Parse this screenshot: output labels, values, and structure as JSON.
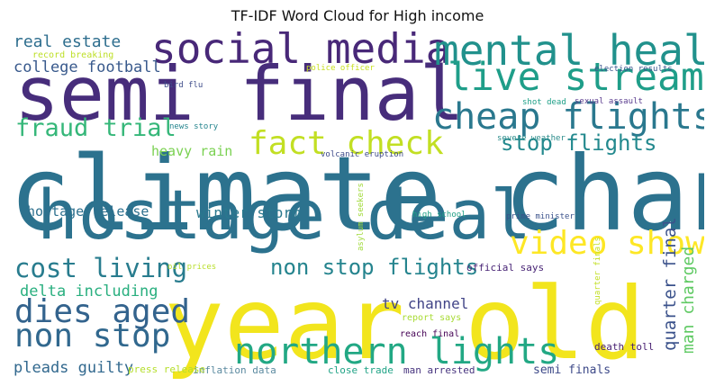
{
  "chart_data": {
    "type": "wordcloud",
    "title": "TF-IDF Word Cloud for High income",
    "words": [
      {
        "text": "climate change",
        "weight": 1.0,
        "color": "#2c728e",
        "orientation": "horizontal"
      },
      {
        "text": "year old",
        "weight": 0.97,
        "color": "#f2e51d",
        "orientation": "horizontal"
      },
      {
        "text": "semi final",
        "weight": 0.73,
        "color": "#472d7b",
        "orientation": "horizontal"
      },
      {
        "text": "hostage deal",
        "weight": 0.67,
        "color": "#2c728e",
        "orientation": "horizontal"
      },
      {
        "text": "social media",
        "weight": 0.4,
        "color": "#482878",
        "orientation": "horizontal"
      },
      {
        "text": "mental health",
        "weight": 0.4,
        "color": "#21918c",
        "orientation": "horizontal"
      },
      {
        "text": "live stream",
        "weight": 0.38,
        "color": "#1f9e89",
        "orientation": "horizontal"
      },
      {
        "text": "cheap flights",
        "weight": 0.35,
        "color": "#2a788e",
        "orientation": "horizontal"
      },
      {
        "text": "northern lights",
        "weight": 0.35,
        "color": "#22a884",
        "orientation": "horizontal"
      },
      {
        "text": "fact check",
        "weight": 0.32,
        "color": "#c2df23",
        "orientation": "horizontal"
      },
      {
        "text": "video shows",
        "weight": 0.32,
        "color": "#fde725",
        "orientation": "horizontal"
      },
      {
        "text": "non stop",
        "weight": 0.32,
        "color": "#31688e",
        "orientation": "horizontal"
      },
      {
        "text": "dies aged",
        "weight": 0.32,
        "color": "#33638d",
        "orientation": "horizontal"
      },
      {
        "text": "cost living",
        "weight": 0.25,
        "color": "#287c8e",
        "orientation": "horizontal"
      },
      {
        "text": "fraud trial",
        "weight": 0.24,
        "color": "#35b779",
        "orientation": "horizontal"
      },
      {
        "text": "stop flights",
        "weight": 0.21,
        "color": "#23898e",
        "orientation": "horizontal"
      },
      {
        "text": "non stop flights",
        "weight": 0.21,
        "color": "#25848e",
        "orientation": "horizontal"
      },
      {
        "text": "quarter final",
        "weight": 0.17,
        "color": "#3b528b",
        "orientation": "vertical"
      },
      {
        "text": "man charged",
        "weight": 0.16,
        "color": "#5ec962",
        "orientation": "vertical"
      },
      {
        "text": "real estate",
        "weight": 0.16,
        "color": "#2e6e8e",
        "orientation": "horizontal"
      },
      {
        "text": "delta including",
        "weight": 0.15,
        "color": "#29af7f",
        "orientation": "horizontal"
      },
      {
        "text": "pleads guilty",
        "weight": 0.15,
        "color": "#31688e",
        "orientation": "horizontal"
      },
      {
        "text": "college football",
        "weight": 0.15,
        "color": "#38598c",
        "orientation": "horizontal"
      },
      {
        "text": "hostage release",
        "weight": 0.13,
        "color": "#2d708e",
        "orientation": "horizontal"
      },
      {
        "text": "winter storm",
        "weight": 0.14,
        "color": "#2a788e",
        "orientation": "horizontal"
      },
      {
        "text": "tv channel",
        "weight": 0.14,
        "color": "#414487",
        "orientation": "horizontal"
      },
      {
        "text": "heavy rain",
        "weight": 0.13,
        "color": "#7ad151",
        "orientation": "horizontal"
      },
      {
        "text": "inflation data",
        "weight": 0.1,
        "color": "#5b8aa0",
        "orientation": "horizontal"
      },
      {
        "text": "press release",
        "weight": 0.1,
        "color": "#b5de2b",
        "orientation": "horizontal"
      },
      {
        "text": "close trade",
        "weight": 0.1,
        "color": "#20a386",
        "orientation": "horizontal"
      },
      {
        "text": "man arrested",
        "weight": 0.1,
        "color": "#46337e",
        "orientation": "horizontal"
      },
      {
        "text": "semi finals",
        "weight": 0.11,
        "color": "#3e4a89",
        "orientation": "horizontal"
      },
      {
        "text": "death toll",
        "weight": 0.1,
        "color": "#482071",
        "orientation": "horizontal"
      },
      {
        "text": "official says",
        "weight": 0.1,
        "color": "#482475",
        "orientation": "horizontal"
      },
      {
        "text": "report says",
        "weight": 0.09,
        "color": "#a8db34",
        "orientation": "horizontal"
      },
      {
        "text": "reach final",
        "weight": 0.09,
        "color": "#440154",
        "orientation": "horizontal"
      },
      {
        "text": "record breaking",
        "weight": 0.09,
        "color": "#bddf26",
        "orientation": "horizontal"
      },
      {
        "text": "police officer",
        "weight": 0.08,
        "color": "#c8e020",
        "orientation": "horizontal"
      },
      {
        "text": "election results",
        "weight": 0.08,
        "color": "#3a548c",
        "orientation": "horizontal"
      },
      {
        "text": "bird flu",
        "weight": 0.08,
        "color": "#3e4c8a",
        "orientation": "horizontal"
      },
      {
        "text": "shot dead",
        "weight": 0.08,
        "color": "#1fa088",
        "orientation": "horizontal"
      },
      {
        "text": "sexual assault",
        "weight": 0.08,
        "color": "#5b3d8f",
        "orientation": "horizontal"
      },
      {
        "text": "news story",
        "weight": 0.07,
        "color": "#25858e",
        "orientation": "horizontal"
      },
      {
        "text": "severe weather",
        "weight": 0.08,
        "color": "#2a8b8a",
        "orientation": "horizontal"
      },
      {
        "text": "volcanic eruption",
        "weight": 0.08,
        "color": "#3d4a89",
        "orientation": "horizontal"
      },
      {
        "text": "high school",
        "weight": 0.07,
        "color": "#23a187",
        "orientation": "horizontal"
      },
      {
        "text": "prime minister",
        "weight": 0.08,
        "color": "#3b528b",
        "orientation": "horizontal"
      },
      {
        "text": "asylum seekers",
        "weight": 0.08,
        "color": "#a0da39",
        "orientation": "vertical"
      },
      {
        "text": "quarter finals",
        "weight": 0.07,
        "color": "#c2df23",
        "orientation": "vertical"
      },
      {
        "text": "oil prices",
        "weight": 0.07,
        "color": "#b8de29",
        "orientation": "horizontal"
      }
    ]
  }
}
